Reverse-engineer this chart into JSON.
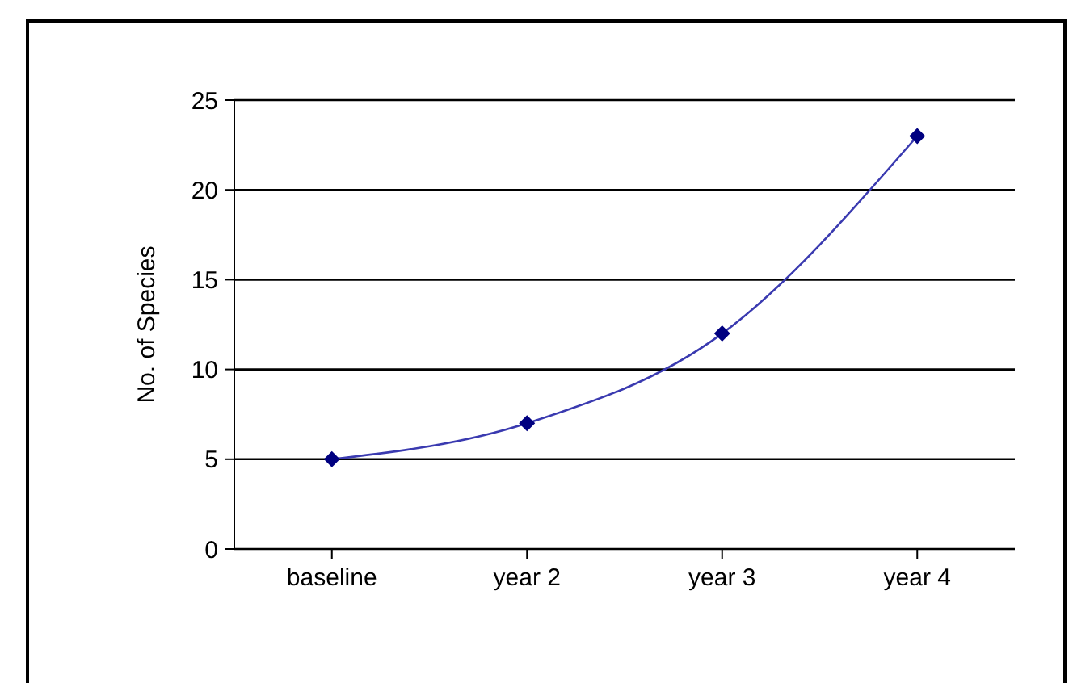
{
  "chart_data": {
    "type": "line",
    "ylabel": "No. of Species",
    "categories": [
      "baseline",
      "year 2",
      "year 3",
      "year 4"
    ],
    "series": [
      {
        "color": "#000080",
        "values": [
          5,
          7,
          12,
          23
        ]
      }
    ],
    "ylim": [
      0,
      25
    ],
    "yticks": [
      0,
      5,
      10,
      15,
      20,
      25
    ],
    "grid": "y",
    "marker": "diamond",
    "line_style": "solid",
    "legend": false
  }
}
